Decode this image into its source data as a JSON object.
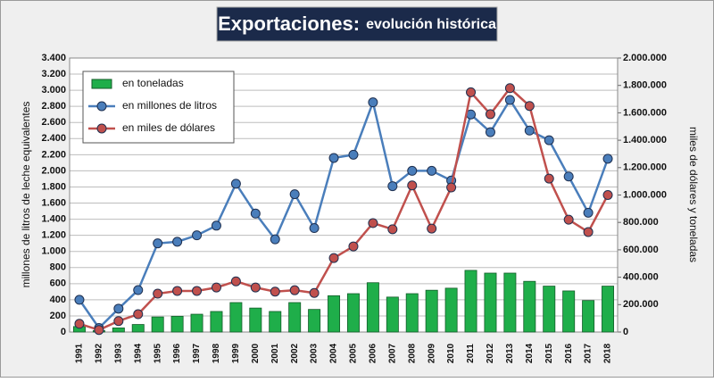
{
  "chart_data": {
    "type": "bar",
    "title": "Exportaciones:",
    "subtitle": "evolución histórica",
    "y_label": "millones de litros de leche equivalentes",
    "y2_label": "miles de dólares y toneladas",
    "categories": [
      "1991",
      "1992",
      "1993",
      "1994",
      "1995",
      "1996",
      "1997",
      "1998",
      "1999",
      "2000",
      "2001",
      "2002",
      "2003",
      "2004",
      "2005",
      "2006",
      "2007",
      "2008",
      "2009",
      "2010",
      "2011",
      "2012",
      "2013",
      "2014",
      "2015",
      "2016",
      "2017",
      "2018"
    ],
    "series": [
      {
        "name": "en toneladas",
        "type": "bar",
        "axis": "y2",
        "color": "#1fae4a",
        "values": [
          40000,
          10000,
          30000,
          55000,
          110000,
          115000,
          130000,
          150000,
          215000,
          175000,
          150000,
          215000,
          165000,
          265000,
          280000,
          360000,
          255000,
          280000,
          305000,
          320000,
          450000,
          430000,
          430000,
          370000,
          335000,
          300000,
          230000,
          335000
        ]
      },
      {
        "name": "en millones de litros",
        "type": "line",
        "axis": "y",
        "color": "#4a7ebb",
        "values": [
          400,
          50,
          290,
          520,
          1100,
          1120,
          1200,
          1320,
          1840,
          1470,
          1150,
          1710,
          1290,
          2160,
          2200,
          2850,
          1810,
          2000,
          2000,
          1880,
          2700,
          2480,
          2880,
          2500,
          2380,
          1930,
          1480,
          2150
        ]
      },
      {
        "name": "en miles de dólares",
        "type": "line",
        "axis": "y2",
        "color": "#c0504d",
        "values": [
          60000,
          15000,
          80000,
          130000,
          280000,
          300000,
          300000,
          325000,
          370000,
          325000,
          295000,
          305000,
          285000,
          540000,
          625000,
          795000,
          750000,
          1070000,
          755000,
          1055000,
          1750000,
          1590000,
          1780000,
          1650000,
          1120000,
          820000,
          730000,
          1000000
        ]
      }
    ],
    "ylim": [
      0,
      3400
    ],
    "yticks": [
      0,
      200,
      400,
      600,
      800,
      {
        "value": 1000,
        "label": "1.000"
      },
      {
        "value": 1200,
        "label": "1.200"
      },
      {
        "value": 1400,
        "label": "1.400"
      },
      {
        "value": 1600,
        "label": "1.600"
      },
      {
        "value": 1800,
        "label": "1.800"
      },
      {
        "value": 2000,
        "label": "2.000"
      },
      {
        "value": 2200,
        "label": "2.200"
      },
      {
        "value": 2400,
        "label": "2.400"
      },
      {
        "value": 2600,
        "label": "2.600"
      },
      {
        "value": 2800,
        "label": "2.800"
      },
      {
        "value": 3000,
        "label": "3.000"
      },
      {
        "value": 3200,
        "label": "3.200"
      },
      {
        "value": 3400,
        "label": "3.400"
      }
    ],
    "y2lim": [
      0,
      2000000
    ],
    "y2ticks": [
      0,
      {
        "value": 200000,
        "label": "200.000"
      },
      {
        "value": 400000,
        "label": "400.000"
      },
      {
        "value": 600000,
        "label": "600.000"
      },
      {
        "value": 800000,
        "label": "800.000"
      },
      {
        "value": 1000000,
        "label": "1.000.000"
      },
      {
        "value": 1200000,
        "label": "1.200.000"
      },
      {
        "value": 1400000,
        "label": "1.400.000"
      },
      {
        "value": 1600000,
        "label": "1.600.000"
      },
      {
        "value": 1800000,
        "label": "1.800.000"
      },
      {
        "value": 2000000,
        "label": "2.000.000"
      }
    ],
    "grid": true,
    "legend": "upper-left"
  }
}
